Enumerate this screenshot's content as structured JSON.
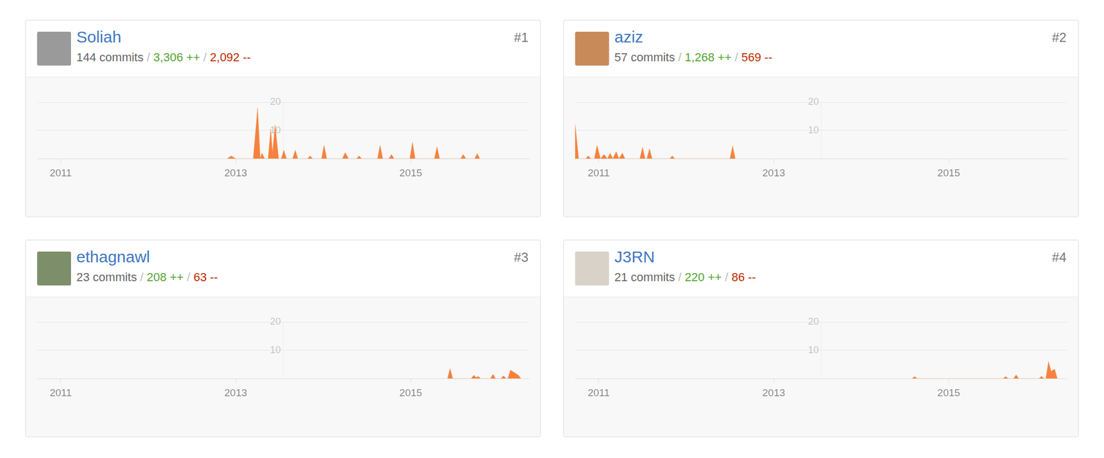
{
  "chart_data": [
    {
      "type": "area",
      "title": "Soliah",
      "rank": "#1",
      "commits": "144 commits",
      "additions": "3,306 ++",
      "deletions": "2,092 --",
      "separator": "/",
      "x": [
        2012.9,
        2012.95,
        2013.0,
        2013.2,
        2013.25,
        2013.28,
        2013.3,
        2013.33,
        2013.37,
        2013.4,
        2013.42,
        2013.45,
        2013.49,
        2013.52,
        2013.55,
        2013.58,
        2013.65,
        2013.68,
        2013.71,
        2013.82,
        2013.85,
        2013.88,
        2013.98,
        2014.01,
        2014.04,
        2014.22,
        2014.25,
        2014.29,
        2014.38,
        2014.41,
        2014.44,
        2014.62,
        2014.65,
        2014.68,
        2014.75,
        2014.78,
        2014.81,
        2014.99,
        2015.02,
        2015.05,
        2015.27,
        2015.3,
        2015.33,
        2015.57,
        2015.6,
        2015.63,
        2015.73,
        2015.76,
        2015.79
      ],
      "values": [
        0,
        1,
        0,
        0,
        17.8,
        0,
        2,
        0,
        0,
        10.4,
        2,
        12,
        0,
        0,
        3,
        0,
        0,
        3,
        0,
        0,
        1,
        0,
        0,
        4.7,
        0,
        0,
        2.2,
        0,
        0,
        1,
        0,
        0,
        4.7,
        0,
        0,
        1.5,
        0,
        0,
        5.8,
        0,
        0,
        4.2,
        0,
        0,
        1.5,
        0,
        0,
        1.8,
        0
      ],
      "color": "#f6823c",
      "xlim": [
        2010.73,
        2016.35
      ],
      "xticks": [
        2011,
        2013,
        2015
      ],
      "ylim": [
        0,
        20
      ],
      "yticks": [
        10,
        20
      ],
      "grid": true
    },
    {
      "type": "area",
      "title": "aziz",
      "rank": "#2",
      "commits": "57 commits",
      "additions": "1,268 ++",
      "deletions": "569 --",
      "separator": "/",
      "x": [
        2010.73,
        2010.77,
        2010.85,
        2010.88,
        2010.91,
        2010.95,
        2010.98,
        2011.02,
        2011.06,
        2011.1,
        2011.13,
        2011.16,
        2011.2,
        2011.23,
        2011.27,
        2011.3,
        2011.47,
        2011.5,
        2011.53,
        2011.55,
        2011.58,
        2011.61,
        2011.81,
        2011.84,
        2011.87,
        2012.5,
        2012.53,
        2012.56
      ],
      "values": [
        12.2,
        0,
        0,
        1,
        0,
        0,
        4.7,
        0,
        1.5,
        0,
        2,
        0,
        2.5,
        0,
        2,
        0,
        0,
        4,
        0,
        0,
        3.5,
        0,
        0,
        1,
        0,
        0,
        4.5,
        0
      ],
      "color": "#f6823c",
      "xlim": [
        2010.73,
        2016.35
      ],
      "xticks": [
        2011,
        2013,
        2015
      ],
      "ylim": [
        0,
        20
      ],
      "yticks": [
        10,
        20
      ],
      "grid": true
    },
    {
      "type": "area",
      "title": "ethagnawl",
      "rank": "#3",
      "commits": "23 commits",
      "additions": "208 ++",
      "deletions": "63 --",
      "separator": "/",
      "x": [
        2015.42,
        2015.45,
        2015.48,
        2015.69,
        2015.72,
        2015.75,
        2015.77,
        2015.8,
        2015.91,
        2015.94,
        2015.97,
        2016.03,
        2016.06,
        2016.09,
        2016.11,
        2016.14,
        2016.19,
        2016.23,
        2016.26
      ],
      "values": [
        0,
        3.5,
        0,
        0,
        1.2,
        0.3,
        0.8,
        0,
        0,
        1.5,
        0,
        0,
        1,
        0,
        0,
        3,
        2,
        1.2,
        0
      ],
      "color": "#f6823c",
      "xlim": [
        2010.73,
        2016.35
      ],
      "xticks": [
        2011,
        2013,
        2015
      ],
      "ylim": [
        0,
        20
      ],
      "yticks": [
        10,
        20
      ],
      "grid": true
    },
    {
      "type": "area",
      "title": "J3RN",
      "rank": "#4",
      "commits": "21 commits",
      "additions": "220 ++",
      "deletions": "86 --",
      "separator": "/",
      "x": [
        2014.58,
        2014.61,
        2014.64,
        2015.62,
        2015.65,
        2015.68,
        2015.74,
        2015.77,
        2015.8,
        2016.03,
        2016.06,
        2016.09,
        2016.11,
        2016.14,
        2016.17,
        2016.19,
        2016.21,
        2016.24
      ],
      "values": [
        0,
        0.7,
        0,
        0,
        0.7,
        0,
        0,
        1.3,
        0,
        0,
        0.8,
        0,
        0,
        6,
        2.5,
        3,
        3.3,
        0
      ],
      "color": "#f6823c",
      "xlim": [
        2010.73,
        2016.35
      ],
      "xticks": [
        2011,
        2013,
        2015
      ],
      "ylim": [
        0,
        20
      ],
      "yticks": [
        10,
        20
      ],
      "grid": true
    }
  ]
}
